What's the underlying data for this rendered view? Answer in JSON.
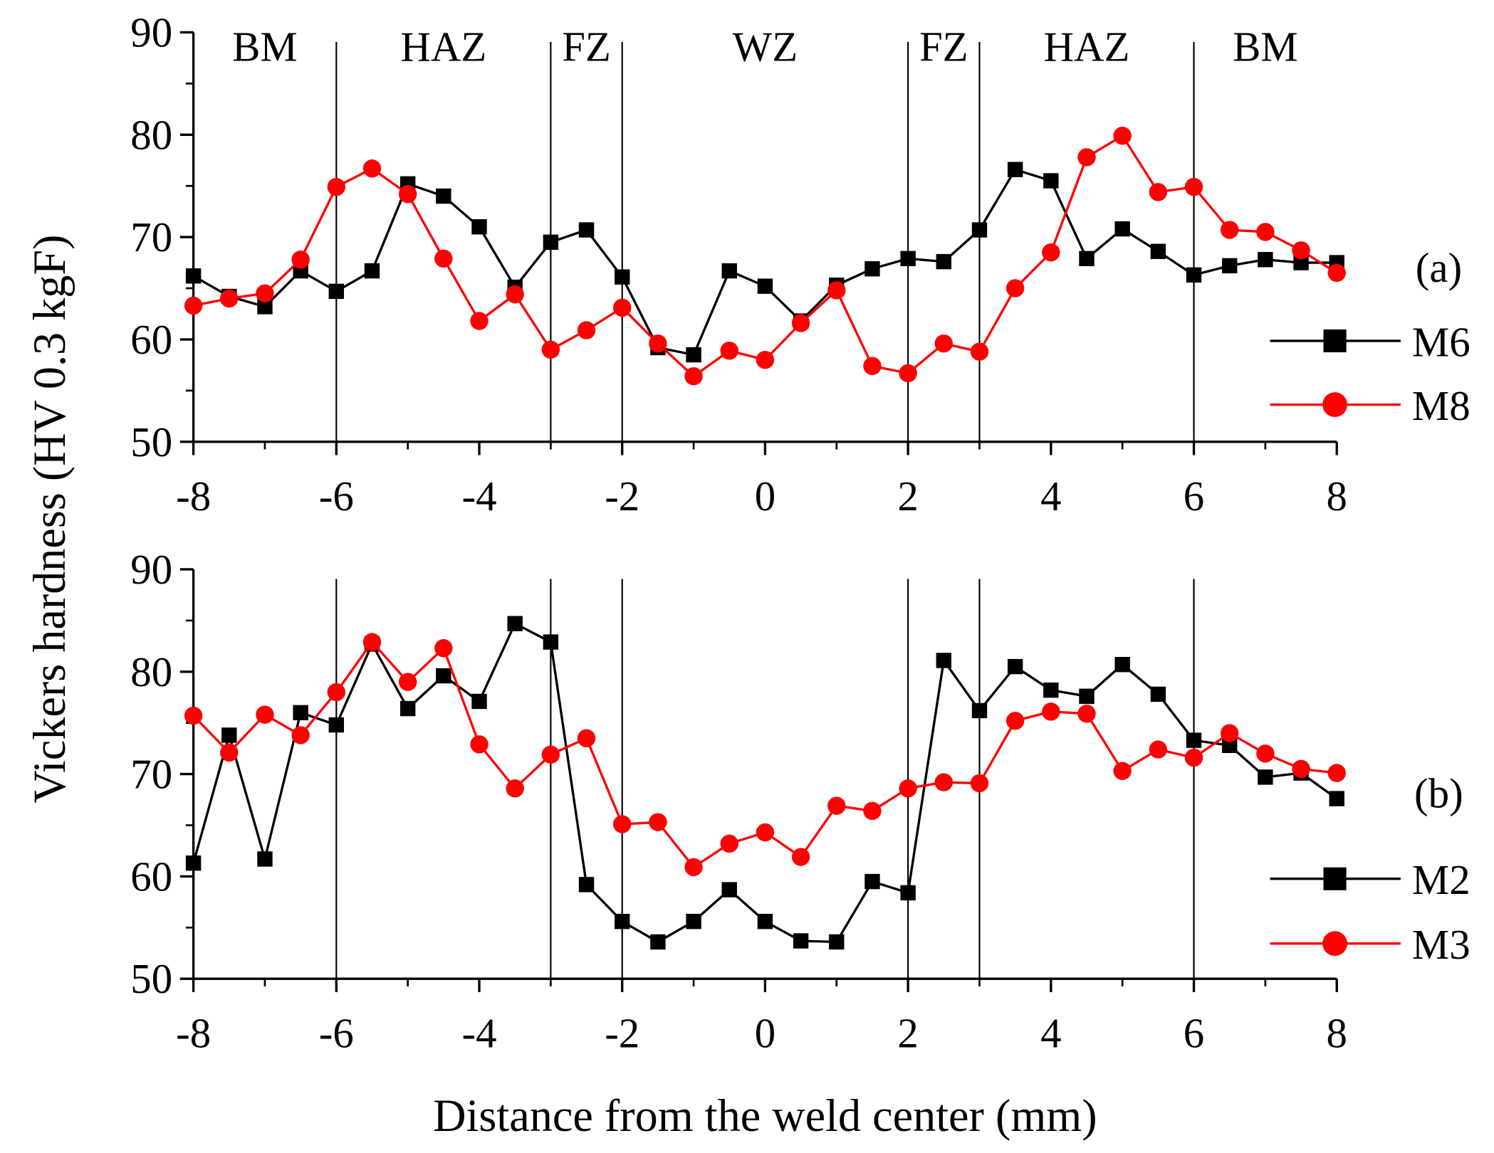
{
  "chart_data": [
    {
      "type": "line",
      "panel_label": "(a)",
      "x": [
        -8,
        -7.5,
        -7,
        -6.5,
        -6,
        -5.5,
        -5,
        -4.5,
        -4,
        -3.5,
        -3,
        -2.5,
        -2,
        -1.5,
        -1,
        -0.5,
        0,
        0.5,
        1,
        1.5,
        2,
        2.5,
        3,
        3.5,
        4,
        4.5,
        5,
        5.5,
        6,
        6.5,
        7,
        7.5,
        8
      ],
      "series": [
        {
          "name": "M6",
          "color": "#000000",
          "marker": "square",
          "values": [
            66.2,
            64.2,
            63.2,
            66.7,
            64.7,
            66.7,
            75.2,
            74.0,
            71.0,
            65.1,
            69.5,
            70.7,
            66.1,
            59.2,
            58.5,
            66.7,
            65.2,
            61.8,
            65.3,
            66.9,
            67.9,
            67.6,
            70.7,
            76.6,
            75.5,
            67.9,
            70.8,
            68.6,
            66.3,
            67.2,
            67.8,
            67.5,
            67.5
          ]
        },
        {
          "name": "M8",
          "color": "#ff0000",
          "marker": "circle",
          "values": [
            63.3,
            64.0,
            64.5,
            67.8,
            74.9,
            76.7,
            74.2,
            67.9,
            61.8,
            64.4,
            59.0,
            60.9,
            63.1,
            59.6,
            56.4,
            58.9,
            58.0,
            61.6,
            64.8,
            57.4,
            56.7,
            59.6,
            58.8,
            65.0,
            68.5,
            77.8,
            79.9,
            74.4,
            74.9,
            70.7,
            70.5,
            68.7,
            66.5
          ]
        }
      ],
      "xlim": [
        -8,
        8
      ],
      "ylim": [
        50,
        90
      ],
      "xticks": [
        "-8",
        "-6",
        "-4",
        "-2",
        "0",
        "2",
        "4",
        "6",
        "8"
      ],
      "yticks": [
        "50",
        "60",
        "70",
        "80",
        "90"
      ],
      "zone_boundaries": [
        -6,
        -3,
        -2,
        2,
        3,
        6
      ],
      "zones": [
        "BM",
        "HAZ",
        "FZ",
        "WZ",
        "FZ",
        "HAZ",
        "BM"
      ],
      "legend_position": "right"
    },
    {
      "type": "line",
      "panel_label": "(b)",
      "x": [
        -8,
        -7.5,
        -7,
        -6.5,
        -6,
        -5.5,
        -5,
        -4.5,
        -4,
        -3.5,
        -3,
        -2.5,
        -2,
        -1.5,
        -1,
        -0.5,
        0,
        0.5,
        1,
        1.5,
        2,
        2.5,
        3,
        3.5,
        4,
        4.5,
        5,
        5.5,
        6,
        6.5,
        7,
        7.5,
        8
      ],
      "series": [
        {
          "name": "M2",
          "color": "#000000",
          "marker": "square",
          "values": [
            61.3,
            73.8,
            61.7,
            76.0,
            74.8,
            82.7,
            76.4,
            79.6,
            77.1,
            84.7,
            82.9,
            59.2,
            55.6,
            53.6,
            55.6,
            58.7,
            55.6,
            53.7,
            53.6,
            59.5,
            58.4,
            81.1,
            76.2,
            80.5,
            78.2,
            77.6,
            80.7,
            77.8,
            73.3,
            72.8,
            69.7,
            70.1,
            67.6
          ]
        },
        {
          "name": "M3",
          "color": "#ff0000",
          "marker": "circle",
          "values": [
            75.7,
            72.1,
            75.8,
            73.8,
            78.0,
            82.9,
            79.0,
            82.3,
            72.9,
            68.6,
            71.9,
            73.5,
            65.1,
            65.3,
            60.9,
            63.2,
            64.3,
            61.9,
            66.9,
            66.4,
            68.6,
            69.2,
            69.1,
            75.2,
            76.1,
            75.9,
            70.3,
            72.4,
            71.6,
            74.0,
            72.0,
            70.5,
            70.1
          ]
        }
      ],
      "xlim": [
        -8,
        8
      ],
      "ylim": [
        50,
        90
      ],
      "xticks": [
        "-8",
        "-6",
        "-4",
        "-2",
        "0",
        "2",
        "4",
        "6",
        "8"
      ],
      "yticks": [
        "50",
        "60",
        "70",
        "80",
        "90"
      ],
      "zone_boundaries": [
        -6,
        -3,
        -2,
        2,
        3,
        6
      ],
      "legend_position": "right"
    }
  ],
  "labels": {
    "ylabel": "Vickers hardness (HV 0.3 kgF)",
    "xlabel": "Distance from the weld center (mm)"
  }
}
